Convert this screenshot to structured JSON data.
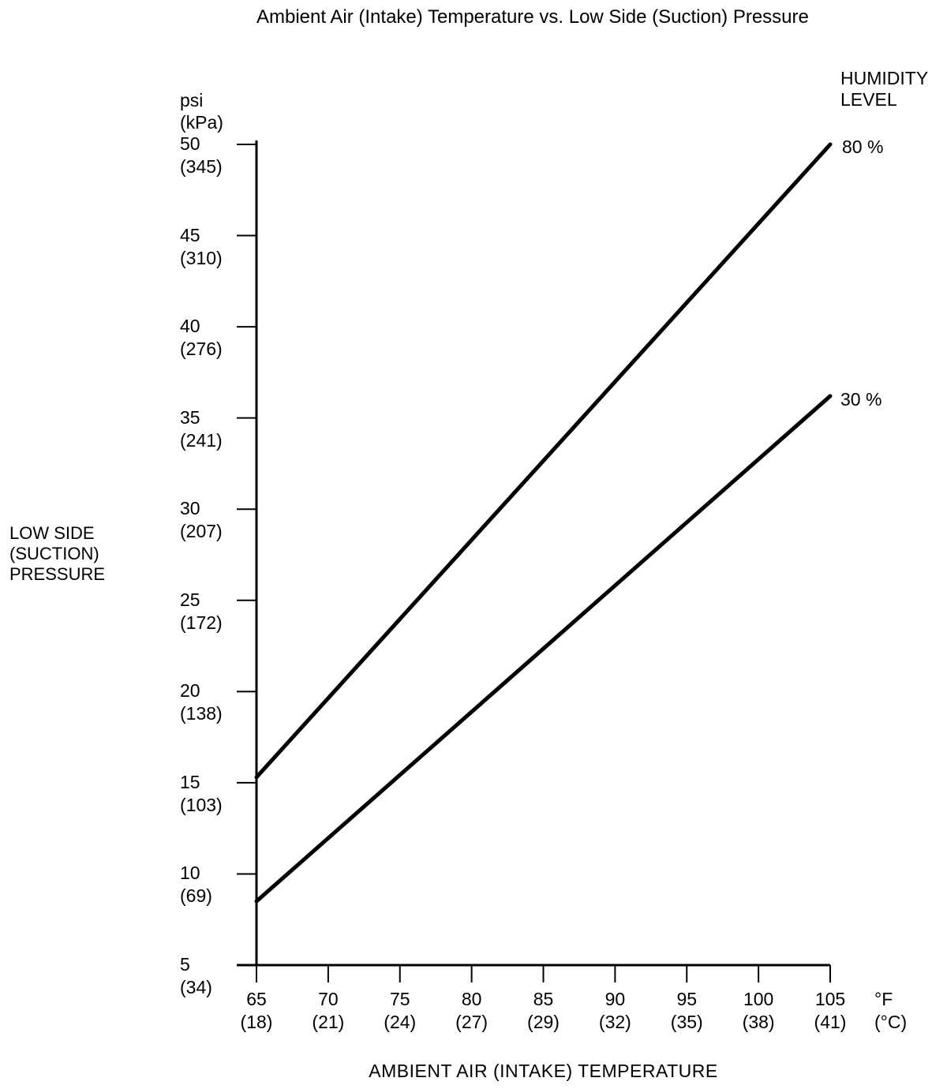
{
  "chart_data": {
    "type": "line",
    "title": "Ambient Air (Intake) Temperature vs. Low Side (Suction) Pressure",
    "xlabel": "AMBIENT AIR (INTAKE) TEMPERATURE",
    "ylabel": "LOW SIDE\n(SUCTION)\nPRESSURE",
    "x_unit": "°F\n(°C)",
    "y_unit": "psi\n(kPa)",
    "xlim": [
      65,
      105
    ],
    "ylim": [
      5,
      50
    ],
    "x_ticks_f": [
      65,
      70,
      75,
      80,
      85,
      90,
      95,
      100,
      105
    ],
    "x_ticks_c": [
      18,
      21,
      24,
      27,
      29,
      32,
      35,
      38,
      41
    ],
    "y_ticks_psi": [
      5,
      10,
      15,
      20,
      25,
      30,
      35,
      40,
      45,
      50
    ],
    "y_ticks_kpa": [
      34,
      69,
      103,
      138,
      172,
      207,
      241,
      276,
      310,
      345
    ],
    "legend_title": "HUMIDITY\nLEVEL",
    "legend_position": "top-right",
    "grid": false,
    "line_color": "#000000",
    "series": [
      {
        "name": "80 %",
        "humidity_percent": 80,
        "x_f": [
          65,
          105
        ],
        "y_psi": [
          15.3,
          50
        ]
      },
      {
        "name": "30 %",
        "humidity_percent": 30,
        "x_f": [
          65,
          105
        ],
        "y_psi": [
          8.5,
          36.2
        ]
      }
    ]
  }
}
